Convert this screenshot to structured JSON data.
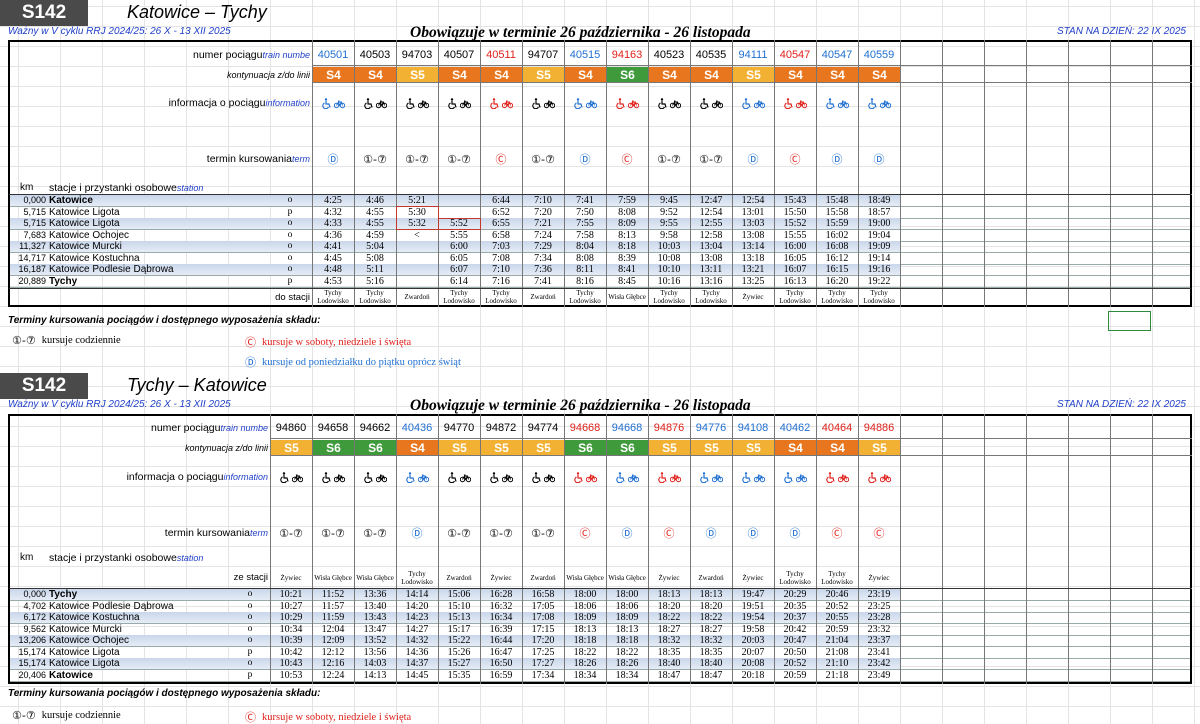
{
  "line_colors": {
    "S4": "#e8761e",
    "S5": "#f2b133",
    "S6": "#3e9a3a"
  },
  "sections": [
    {
      "header": {
        "code": "S142",
        "route": "Katowice – Tychy",
        "validity": "Ważny w V cyklu RRJ 2024/25: 26 X - 13 XII 2025",
        "period": "Obowiązuje w terminie 26 października - 26 listopada",
        "status": "STAN NA DZIEŃ: 22 IX 2025"
      },
      "labels": {
        "number": "numer pociągu",
        "number_en": "train numbe",
        "line": "kontynuacja z/do linii",
        "info": "informacja o pociągu",
        "info_en": "information",
        "days": "termin kursowania",
        "days_en": "term",
        "km": "km",
        "stations": "stacje i przystanki osobowe",
        "stations_en": "station",
        "terminus": "do stacji"
      },
      "trains": [
        {
          "number": "40501",
          "color": "#1f6fd1",
          "line": "S4",
          "days": "Ⓓ",
          "terminus": "Tychy Lodowisko"
        },
        {
          "number": "40503",
          "color": "#000000",
          "line": "S4",
          "days": "①-⑦",
          "terminus": "Tychy Lodowisko"
        },
        {
          "number": "94703",
          "color": "#000000",
          "line": "S5",
          "days": "①-⑦",
          "terminus": "Zwardoń"
        },
        {
          "number": "40507",
          "color": "#000000",
          "line": "S4",
          "days": "①-⑦",
          "terminus": "Tychy Lodowisko"
        },
        {
          "number": "40511",
          "color": "#e0201b",
          "line": "S4",
          "days": "Ⓒ",
          "terminus": "Tychy Lodowisko"
        },
        {
          "number": "94707",
          "color": "#000000",
          "line": "S5",
          "days": "①-⑦",
          "terminus": "Zwardoń"
        },
        {
          "number": "40515",
          "color": "#1f6fd1",
          "line": "S4",
          "days": "Ⓓ",
          "terminus": "Tychy Lodowisko"
        },
        {
          "number": "94163",
          "color": "#e0201b",
          "line": "S6",
          "days": "Ⓒ",
          "terminus": "Wisła Głębce"
        },
        {
          "number": "40523",
          "color": "#000000",
          "line": "S4",
          "days": "①-⑦",
          "terminus": "Tychy Lodowisko"
        },
        {
          "number": "40535",
          "color": "#000000",
          "line": "S4",
          "days": "①-⑦",
          "terminus": "Tychy Lodowisko"
        },
        {
          "number": "94111",
          "color": "#1f6fd1",
          "line": "S5",
          "days": "Ⓓ",
          "terminus": "Żywiec"
        },
        {
          "number": "40547",
          "color": "#e0201b",
          "line": "S4",
          "days": "Ⓒ",
          "terminus": "Tychy Lodowisko"
        },
        {
          "number": "40547",
          "color": "#1f6fd1",
          "line": "S4",
          "days": "Ⓓ",
          "terminus": "Tychy Lodowisko"
        },
        {
          "number": "40559",
          "color": "#1f6fd1",
          "line": "S4",
          "days": "Ⓓ",
          "terminus": "Tychy Lodowisko"
        }
      ],
      "stations": [
        {
          "km": "0,000",
          "name": "Katowice",
          "bold": true,
          "type": "o",
          "times": [
            "4:25",
            "4:46",
            "5:21",
            null,
            "6:44",
            "7:10",
            "7:41",
            "7:59",
            "9:45",
            "12:47",
            "12:54",
            "15:43",
            "15:48",
            "18:49"
          ]
        },
        {
          "km": "5,715",
          "name": "Katowice Ligota",
          "bold": false,
          "type": "p",
          "times": [
            "4:32",
            "4:55",
            "5:30",
            null,
            "6:52",
            "7:20",
            "7:50",
            "8:08",
            "9:52",
            "12:54",
            "13:01",
            "15:50",
            "15:58",
            "18:57"
          ]
        },
        {
          "km": "5,715",
          "name": "Katowice Ligota",
          "bold": false,
          "type": "o",
          "times": [
            "4:33",
            "4:55",
            "5:32",
            "5:52",
            "6:55",
            "7:21",
            "7:55",
            "8:09",
            "9:55",
            "12:55",
            "13:03",
            "15:52",
            "15:59",
            "19:00"
          ]
        },
        {
          "km": "7,683",
          "name": "Katowice Ochojec",
          "bold": false,
          "type": "o",
          "times": [
            "4:36",
            "4:59",
            "<",
            "5:55",
            "6:58",
            "7:24",
            "7:58",
            "8:13",
            "9:58",
            "12:58",
            "13:08",
            "15:55",
            "16:02",
            "19:04"
          ]
        },
        {
          "km": "11,327",
          "name": "Katowice Murcki",
          "bold": false,
          "type": "o",
          "times": [
            "4:41",
            "5:04",
            null,
            "6:00",
            "7:03",
            "7:29",
            "8:04",
            "8:18",
            "10:03",
            "13:04",
            "13:14",
            "16:00",
            "16:08",
            "19:09"
          ]
        },
        {
          "km": "14,717",
          "name": "Katowice Kostuchna",
          "bold": false,
          "type": "o",
          "times": [
            "4:45",
            "5:08",
            null,
            "6:05",
            "7:08",
            "7:34",
            "8:08",
            "8:39",
            "10:08",
            "13:08",
            "13:18",
            "16:05",
            "16:12",
            "19:14"
          ]
        },
        {
          "km": "16,187",
          "name": "Katowice Podlesie Dąbrowa",
          "bold": false,
          "type": "o",
          "times": [
            "4:48",
            "5:11",
            null,
            "6:07",
            "7:10",
            "7:36",
            "8:11",
            "8:41",
            "10:10",
            "13:11",
            "13:21",
            "16:07",
            "16:15",
            "19:16"
          ]
        },
        {
          "km": "20,889",
          "name": "Tychy",
          "bold": true,
          "type": "p",
          "times": [
            "4:53",
            "5:16",
            null,
            "6:14",
            "7:16",
            "7:41",
            "8:16",
            "8:45",
            "10:16",
            "13:16",
            "13:25",
            "16:13",
            "16:20",
            "19:22"
          ]
        }
      ],
      "legend": {
        "title": "Terminy kursowania pociągów i dostępnego wyposażenia składu:",
        "items": [
          {
            "symbol": "①-⑦",
            "text": "kursuje codziennie",
            "color": "#000000"
          },
          {
            "symbol": "Ⓒ",
            "text": "kursuje w soboty, niedziele i święta",
            "color": "#e0201b"
          },
          {
            "symbol": "Ⓓ",
            "text": "kursuje od poniedziałku do piątku oprócz świąt",
            "color": "#1f6fd1"
          }
        ]
      }
    },
    {
      "header": {
        "code": "S142",
        "route": "Tychy – Katowice",
        "validity": "Ważny w V cyklu RRJ 2024/25: 26 X - 13 XII 2025",
        "period": "Obowiązuje w terminie 26 października - 26 listopada",
        "status": "STAN NA DZIEŃ: 22 IX 2025"
      },
      "labels": {
        "number": "numer pociągu",
        "number_en": "train numbe",
        "line": "kontynuacja z/do linii",
        "info": "informacja o pociągu",
        "info_en": "information",
        "days": "termin kursowania",
        "days_en": "term",
        "km": "km",
        "stations": "stacje i przystanki osobowe",
        "stations_en": "station",
        "terminus": "ze stacji"
      },
      "trains": [
        {
          "number": "94860",
          "color": "#000000",
          "line": "S5",
          "days": "①-⑦",
          "terminus": "Żywiec"
        },
        {
          "number": "94658",
          "color": "#000000",
          "line": "S6",
          "days": "①-⑦",
          "terminus": "Wisła Głębce"
        },
        {
          "number": "94662",
          "color": "#000000",
          "line": "S6",
          "days": "①-⑦",
          "terminus": "Wisła Głębce"
        },
        {
          "number": "40436",
          "color": "#1f6fd1",
          "line": "S4",
          "days": "Ⓓ",
          "terminus": "Tychy Lodowisko"
        },
        {
          "number": "94770",
          "color": "#000000",
          "line": "S5",
          "days": "①-⑦",
          "terminus": "Zwardoń"
        },
        {
          "number": "94872",
          "color": "#000000",
          "line": "S5",
          "days": "①-⑦",
          "terminus": "Żywiec"
        },
        {
          "number": "94774",
          "color": "#000000",
          "line": "S5",
          "days": "①-⑦",
          "terminus": "Zwardoń"
        },
        {
          "number": "94668",
          "color": "#e0201b",
          "line": "S6",
          "days": "Ⓒ",
          "terminus": "Wisła Głębce"
        },
        {
          "number": "94668",
          "color": "#1f6fd1",
          "line": "S6",
          "days": "Ⓓ",
          "terminus": "Wisła Głębce"
        },
        {
          "number": "94876",
          "color": "#e0201b",
          "line": "S5",
          "days": "Ⓒ",
          "terminus": "Żywiec"
        },
        {
          "number": "94776",
          "color": "#1f6fd1",
          "line": "S5",
          "days": "Ⓓ",
          "terminus": "Zwardoń"
        },
        {
          "number": "94108",
          "color": "#1f6fd1",
          "line": "S5",
          "days": "Ⓓ",
          "terminus": "Żywiec"
        },
        {
          "number": "40462",
          "color": "#1f6fd1",
          "line": "S4",
          "days": "Ⓓ",
          "terminus": "Tychy Lodowisko"
        },
        {
          "number": "40464",
          "color": "#e0201b",
          "line": "S4",
          "days": "Ⓒ",
          "terminus": "Tychy Lodowisko"
        },
        {
          "number": "94886",
          "color": "#e0201b",
          "line": "S5",
          "days": "Ⓒ",
          "terminus": "Żywiec"
        }
      ],
      "stations": [
        {
          "km": "0,000",
          "name": "Tychy",
          "bold": true,
          "type": "o",
          "times": [
            "10:21",
            "11:52",
            "13:36",
            "14:14",
            "15:06",
            "16:28",
            "16:58",
            "18:00",
            "18:00",
            "18:13",
            "18:13",
            "19:47",
            "20:29",
            "20:46",
            "23:19"
          ]
        },
        {
          "km": "4,702",
          "name": "Katowice Podlesie Dąbrowa",
          "bold": false,
          "type": "o",
          "times": [
            "10:27",
            "11:57",
            "13:40",
            "14:20",
            "15:10",
            "16:32",
            "17:05",
            "18:06",
            "18:06",
            "18:20",
            "18:20",
            "19:51",
            "20:35",
            "20:52",
            "23:25"
          ]
        },
        {
          "km": "6,172",
          "name": "Katowice Kostuchna",
          "bold": false,
          "type": "o",
          "times": [
            "10:29",
            "11:59",
            "13:43",
            "14:23",
            "15:13",
            "16:34",
            "17:08",
            "18:09",
            "18:09",
            "18:22",
            "18:22",
            "19:54",
            "20:37",
            "20:55",
            "23:28"
          ]
        },
        {
          "km": "9,562",
          "name": "Katowice Murcki",
          "bold": false,
          "type": "o",
          "times": [
            "10:34",
            "12:04",
            "13:47",
            "14:27",
            "15:17",
            "16:39",
            "17:15",
            "18:13",
            "18:13",
            "18:27",
            "18:27",
            "19:58",
            "20:42",
            "20:59",
            "23:32"
          ]
        },
        {
          "km": "13,206",
          "name": "Katowice Ochojec",
          "bold": false,
          "type": "o",
          "times": [
            "10:39",
            "12:09",
            "13:52",
            "14:32",
            "15:22",
            "16:44",
            "17:20",
            "18:18",
            "18:18",
            "18:32",
            "18:32",
            "20:03",
            "20:47",
            "21:04",
            "23:37"
          ]
        },
        {
          "km": "15,174",
          "name": "Katowice Ligota",
          "bold": false,
          "type": "p",
          "times": [
            "10:42",
            "12:12",
            "13:56",
            "14:36",
            "15:26",
            "16:47",
            "17:25",
            "18:22",
            "18:22",
            "18:35",
            "18:35",
            "20:07",
            "20:50",
            "21:08",
            "23:41"
          ]
        },
        {
          "km": "15,174",
          "name": "Katowice Ligota",
          "bold": false,
          "type": "o",
          "times": [
            "10:43",
            "12:16",
            "14:03",
            "14:37",
            "15:27",
            "16:50",
            "17:27",
            "18:26",
            "18:26",
            "18:40",
            "18:40",
            "20:08",
            "20:52",
            "21:10",
            "23:42"
          ]
        },
        {
          "km": "20,406",
          "name": "Katowice",
          "bold": true,
          "type": "p",
          "times": [
            "10:53",
            "12:24",
            "14:13",
            "14:45",
            "15:35",
            "16:59",
            "17:34",
            "18:34",
            "18:34",
            "18:47",
            "18:47",
            "20:18",
            "20:59",
            "21:18",
            "23:49"
          ]
        }
      ],
      "legend": {
        "title": "Terminy kursowania pociągów i dostępnego wyposażenia składu:",
        "items": [
          {
            "symbol": "①-⑦",
            "text": "kursuje codziennie",
            "color": "#000000"
          },
          {
            "symbol": "Ⓒ",
            "text": "kursuje w soboty, niedziele i święta",
            "color": "#e0201b"
          }
        ]
      }
    }
  ]
}
